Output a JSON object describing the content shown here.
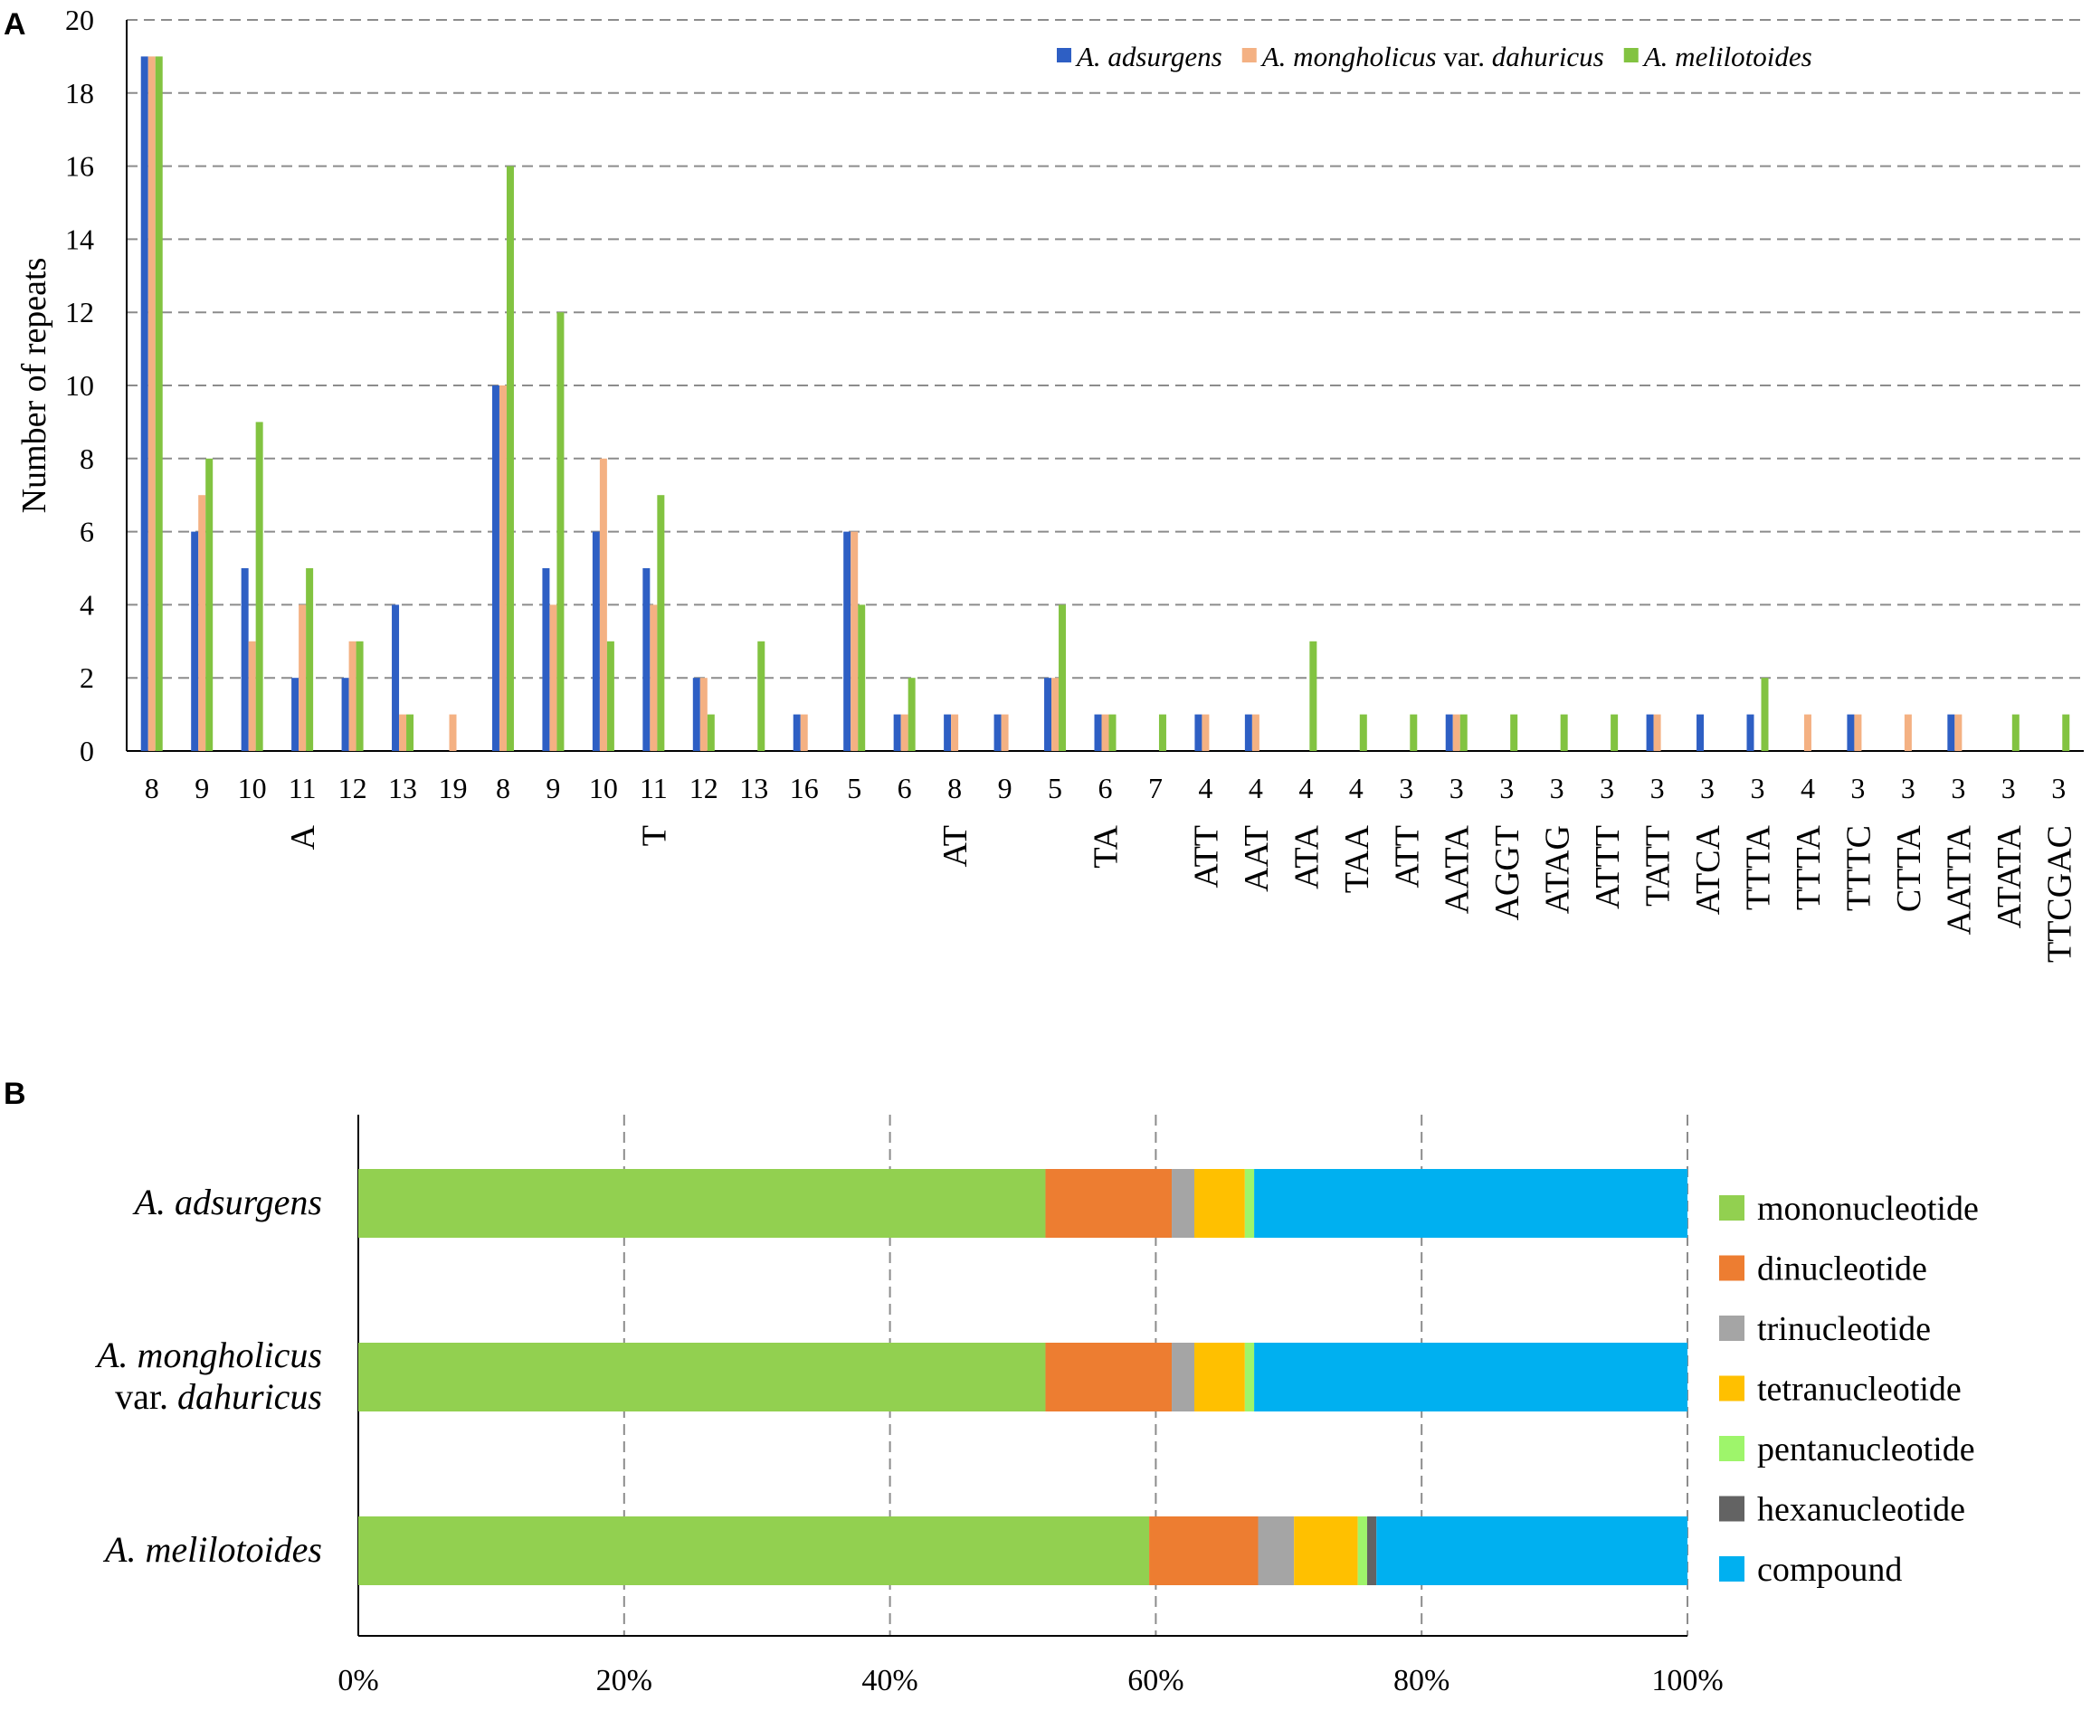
{
  "colors": {
    "series": [
      "#2e5fc4",
      "#f4b183",
      "#82c341"
    ],
    "stack": [
      "#92d050",
      "#ed7d31",
      "#a5a5a5",
      "#ffc000",
      "#9ef56b",
      "#636363",
      "#00b0f0"
    ],
    "grid": "#8c8c8c",
    "axis": "#000000"
  },
  "chart_data": [
    {
      "panel": "A",
      "type": "bar",
      "ylabel": "Number  of  repeats",
      "ylim": [
        0,
        20
      ],
      "yticks": [
        "0",
        "2",
        "4",
        "6",
        "8",
        "10",
        "12",
        "14",
        "16",
        "18",
        "20"
      ],
      "legend_placement": "top-right",
      "series": [
        {
          "name_italic": "A. adsurgens",
          "name_rest": "",
          "values": [
            19,
            6,
            5,
            2,
            2,
            4,
            0,
            10,
            5,
            6,
            5,
            2,
            0,
            1,
            6,
            1,
            1,
            1,
            2,
            1,
            0,
            1,
            1,
            0,
            0,
            0,
            1,
            0,
            0,
            0,
            1,
            1,
            1,
            0,
            1,
            0,
            1,
            0,
            0
          ]
        },
        {
          "name_italic": "A. mongholicus",
          "name_rest": " var. ",
          "name_italic2": "dahuricus",
          "values": [
            19,
            7,
            3,
            4,
            3,
            1,
            1,
            10,
            4,
            8,
            4,
            2,
            0,
            1,
            6,
            1,
            1,
            1,
            2,
            1,
            0,
            1,
            1,
            0,
            0,
            0,
            1,
            0,
            0,
            0,
            1,
            0,
            0,
            1,
            1,
            1,
            1,
            0,
            0
          ]
        },
        {
          "name_italic": "A. melilotoides",
          "name_rest": "",
          "values": [
            19,
            8,
            9,
            5,
            3,
            1,
            0,
            16,
            12,
            3,
            7,
            1,
            3,
            0,
            4,
            2,
            0,
            0,
            4,
            1,
            1,
            0,
            0,
            3,
            1,
            1,
            1,
            1,
            1,
            1,
            0,
            0,
            2,
            0,
            0,
            0,
            0,
            1,
            1
          ]
        }
      ],
      "categories": [
        {
          "len": "8",
          "motif": ""
        },
        {
          "len": "9",
          "motif": ""
        },
        {
          "len": "10",
          "motif": ""
        },
        {
          "len": "11",
          "motif": "A"
        },
        {
          "len": "12",
          "motif": ""
        },
        {
          "len": "13",
          "motif": ""
        },
        {
          "len": "19",
          "motif": ""
        },
        {
          "len": "8",
          "motif": ""
        },
        {
          "len": "9",
          "motif": ""
        },
        {
          "len": "10",
          "motif": ""
        },
        {
          "len": "11",
          "motif": "T"
        },
        {
          "len": "12",
          "motif": ""
        },
        {
          "len": "13",
          "motif": ""
        },
        {
          "len": "16",
          "motif": ""
        },
        {
          "len": "5",
          "motif": ""
        },
        {
          "len": "6",
          "motif": ""
        },
        {
          "len": "8",
          "motif": "AT"
        },
        {
          "len": "9",
          "motif": ""
        },
        {
          "len": "5",
          "motif": ""
        },
        {
          "len": "6",
          "motif": "TA"
        },
        {
          "len": "7",
          "motif": ""
        },
        {
          "len": "4",
          "motif": "ATT"
        },
        {
          "len": "4",
          "motif": "AAT"
        },
        {
          "len": "4",
          "motif": "ATA"
        },
        {
          "len": "4",
          "motif": "TAA"
        },
        {
          "len": "3",
          "motif": "ATT"
        },
        {
          "len": "3",
          "motif": "AATA"
        },
        {
          "len": "3",
          "motif": "AGGT"
        },
        {
          "len": "3",
          "motif": "ATAG"
        },
        {
          "len": "3",
          "motif": "ATTT"
        },
        {
          "len": "3",
          "motif": "TATT"
        },
        {
          "len": "3",
          "motif": "ATCA"
        },
        {
          "len": "3",
          "motif": "TTTA"
        },
        {
          "len": "4",
          "motif": "TTTA"
        },
        {
          "len": "3",
          "motif": "TTTC"
        },
        {
          "len": "3",
          "motif": "CTTA"
        },
        {
          "len": "3",
          "motif": "AATTA"
        },
        {
          "len": "3",
          "motif": "ATATA"
        },
        {
          "len": "3",
          "motif": "TTCGAC"
        }
      ]
    },
    {
      "panel": "B",
      "type": "bar",
      "orientation": "horizontal-stacked-100%",
      "xticks": [
        "0%",
        "20%",
        "40%",
        "60%",
        "80%",
        "100%"
      ],
      "legend_placement": "right",
      "categories": [
        {
          "lines": [
            {
              "text": "A. adsurgens",
              "italic": true
            }
          ]
        },
        {
          "lines": [
            {
              "text": "A. mongholicus",
              "italic": true
            },
            {
              "text": "var. ",
              "italic": false,
              "tail": "dahuricus"
            }
          ]
        },
        {
          "lines": [
            {
              "text": "A. melilotoides",
              "italic": true
            }
          ]
        }
      ],
      "series": [
        {
          "name": "mononucleotide",
          "values": [
            51.7,
            51.7,
            59.5
          ]
        },
        {
          "name": "dinucleotide",
          "values": [
            9.5,
            9.5,
            8.2
          ]
        },
        {
          "name": "trinucleotide",
          "values": [
            1.7,
            1.7,
            2.7
          ]
        },
        {
          "name": "tetranucleotide",
          "values": [
            3.8,
            3.8,
            4.8
          ]
        },
        {
          "name": "pentanucleotide",
          "values": [
            0.7,
            0.7,
            0.7
          ]
        },
        {
          "name": "hexanucleotide",
          "values": [
            0,
            0,
            0.7
          ]
        },
        {
          "name": "compound",
          "values": [
            32.6,
            32.6,
            23.4
          ]
        }
      ]
    }
  ],
  "panels": {
    "a": "A",
    "b": "B"
  }
}
